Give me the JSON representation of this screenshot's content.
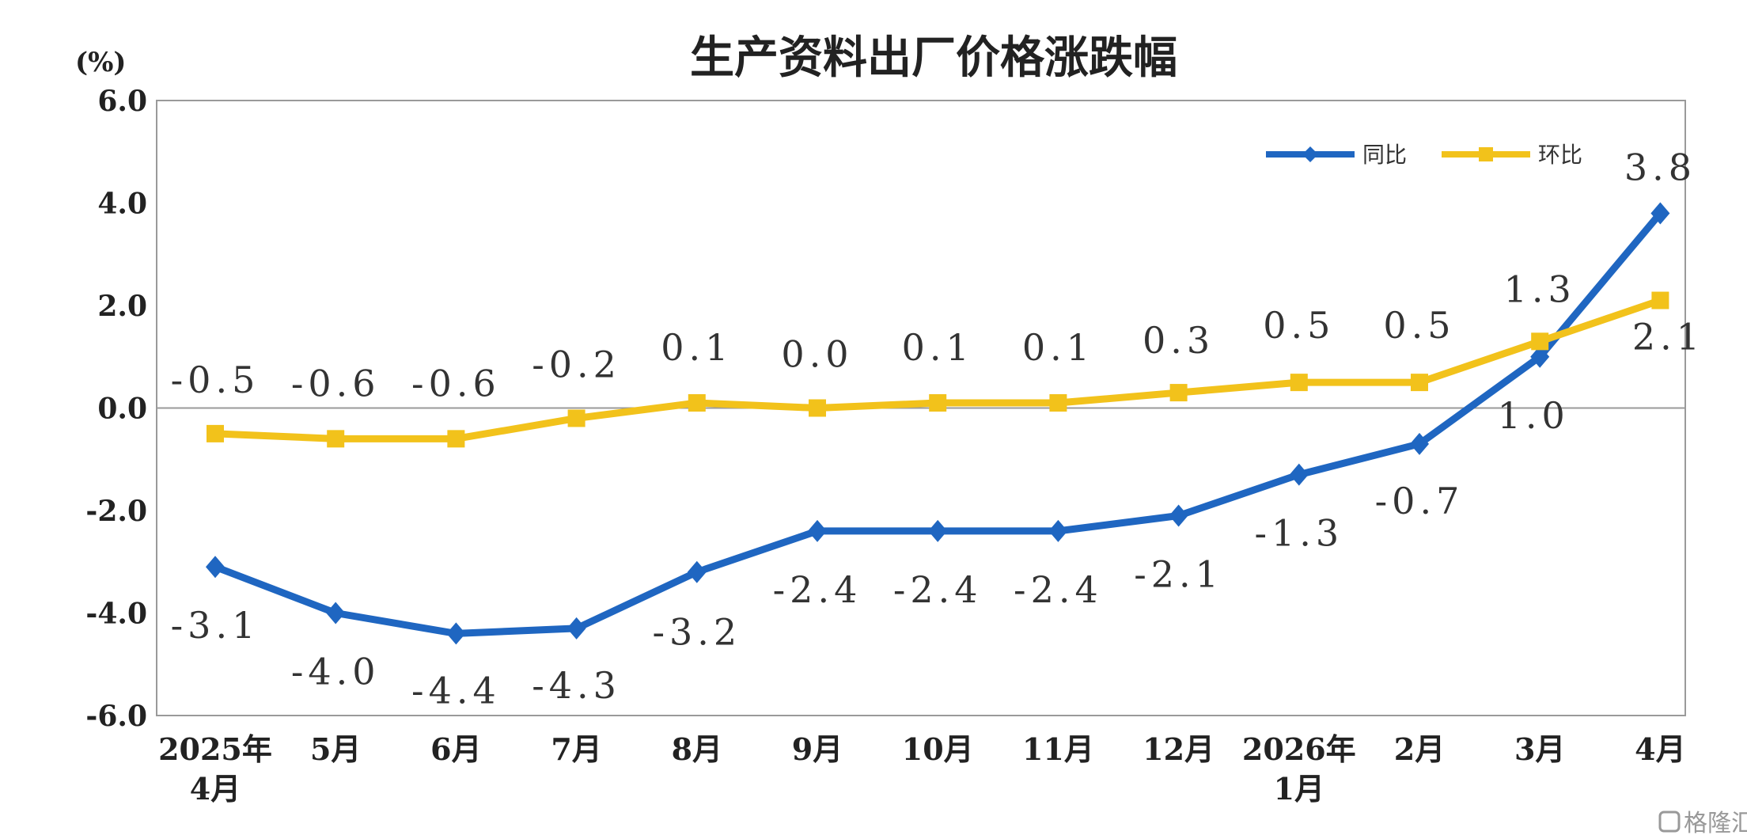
{
  "chart_data": {
    "type": "line",
    "title": "生产资料出厂价格涨跌幅",
    "ylabel": "(%)",
    "ylim": [
      -6.0,
      6.0
    ],
    "yticks": [
      "6.0",
      "4.0",
      "2.0",
      "0.0",
      "-2.0",
      "-4.0",
      "-6.0"
    ],
    "categories": [
      [
        "2025年",
        "4月"
      ],
      [
        "5月"
      ],
      [
        "6月"
      ],
      [
        "7月"
      ],
      [
        "8月"
      ],
      [
        "9月"
      ],
      [
        "10月"
      ],
      [
        "11月"
      ],
      [
        "12月"
      ],
      [
        "2026年",
        "1月"
      ],
      [
        "2月"
      ],
      [
        "3月"
      ],
      [
        "4月"
      ]
    ],
    "series": [
      {
        "name": "同比",
        "color": "#1f66c1",
        "marker": "diamond",
        "values": [
          -3.1,
          -4.0,
          -4.4,
          -4.3,
          -3.2,
          -2.4,
          -2.4,
          -2.4,
          -2.1,
          -1.3,
          -0.7,
          1.0,
          3.8
        ],
        "labels": [
          "-3.1",
          "-4.0",
          "-4.4",
          "-4.3",
          "-3.2",
          "-2.4",
          "-2.4",
          "-2.4",
          "-2.1",
          "-1.3",
          "-0.7",
          "1.0",
          "3.8"
        ]
      },
      {
        "name": "环比",
        "color": "#f2c21b",
        "marker": "square",
        "values": [
          -0.5,
          -0.6,
          -0.6,
          -0.2,
          0.1,
          0.0,
          0.1,
          0.1,
          0.3,
          0.5,
          0.5,
          1.3,
          2.1
        ],
        "labels": [
          "-0.5",
          "-0.6",
          "-0.6",
          "-0.2",
          "0.1",
          "0.0",
          "0.1",
          "0.1",
          "0.3",
          "0.5",
          "0.5",
          "1.3",
          "2.1"
        ]
      }
    ],
    "legend_position": "top-right",
    "grid": false
  },
  "watermark": {
    "icon": "gelonghui-logo-icon",
    "text": "格隆汇"
  }
}
